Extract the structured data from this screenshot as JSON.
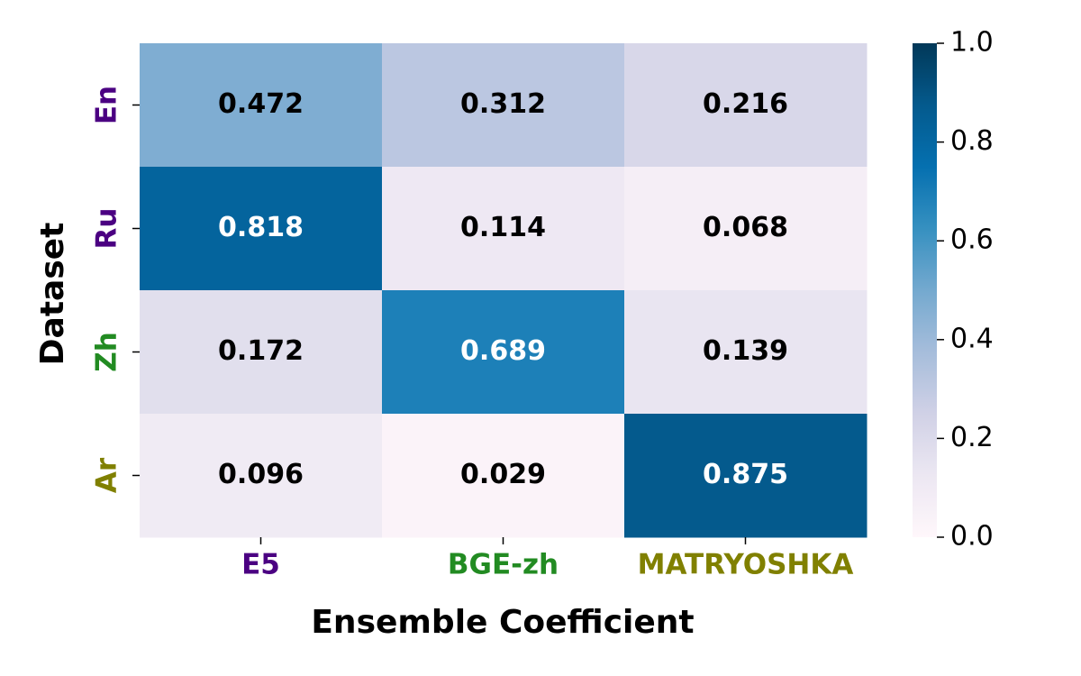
{
  "chart_data": {
    "type": "heatmap",
    "x_label": "Ensemble Coefficient",
    "y_label": "Dataset",
    "x_categories": [
      "E5",
      "BGE-zh",
      "MATRYOSHKA"
    ],
    "y_categories": [
      "En",
      "Ru",
      "Zh",
      "Ar"
    ],
    "x_category_colors": [
      "#4b0082",
      "#228b22",
      "#808000"
    ],
    "y_category_colors": [
      "#4b0082",
      "#4b0082",
      "#228b22",
      "#808000"
    ],
    "values": [
      [
        0.472,
        0.312,
        0.216
      ],
      [
        0.818,
        0.114,
        0.068
      ],
      [
        0.172,
        0.689,
        0.139
      ],
      [
        0.096,
        0.029,
        0.875
      ]
    ],
    "colormap": "PuBu",
    "clim": [
      0,
      1
    ],
    "cticks": [
      {
        "value": 0,
        "label": "0.0"
      },
      0.2,
      0.4,
      0.6,
      0.8,
      {
        "value": 1,
        "label": "1.0"
      }
    ]
  }
}
